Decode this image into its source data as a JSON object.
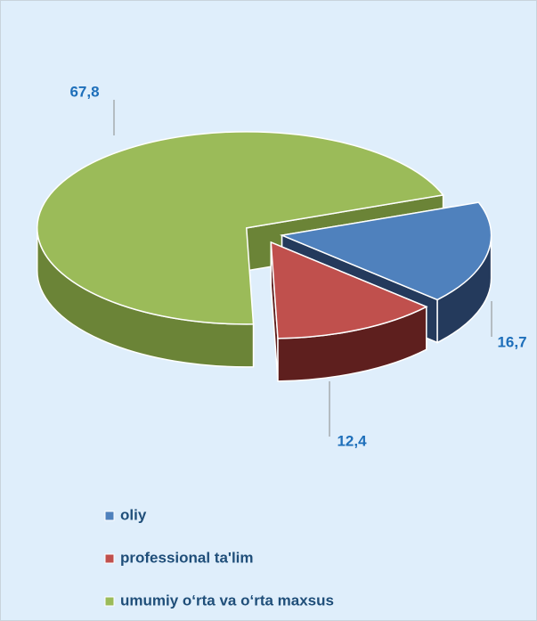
{
  "chart_data": {
    "type": "pie",
    "categories": [
      "oliy",
      "professional ta'lim",
      "umumiy o‘rta va o‘rta maxsus"
    ],
    "values": [
      16.7,
      12.4,
      67.8
    ],
    "value_labels": [
      "16,7",
      "12,4",
      "67,8"
    ],
    "colors": [
      "#4f81bd",
      "#c0504d",
      "#9bbb59"
    ],
    "side_colors": [
      "#243a5c",
      "#5e1f1e",
      "#6b8437"
    ]
  }
}
